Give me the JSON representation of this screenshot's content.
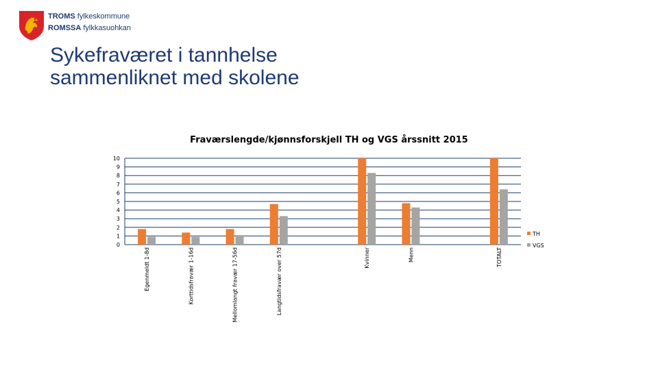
{
  "header": {
    "org_line1_bold": "TROMS",
    "org_line1_rest": " fylkeskommune",
    "org_line2_bold": "ROMSSA",
    "org_line2_rest": " fylkkasuohkan"
  },
  "slide": {
    "title_line1": "Sykefraværet i tannhelse",
    "title_line2": "sammenliknet med skolene"
  },
  "colors": {
    "TH": "#ed7d31",
    "VGS": "#a5a5a5",
    "grid": "#1f3b6e",
    "brand": "#1d3a73",
    "logo_red": "#d8232a",
    "logo_gold": "#f4b400"
  },
  "chart_data": {
    "type": "bar",
    "title": "Fraværslengde/kjønnsforskjell TH og VGS årssnitt 2015",
    "categories": [
      "Egenmeldt 1-8d",
      "Korttidsfravær 1-16d",
      "Mellomlangt fravær 17-56d",
      "Langtidsfravær over 57d",
      "",
      "Kvinner",
      "Menn",
      "",
      "TOTALT"
    ],
    "series": [
      {
        "name": "TH",
        "values": [
          1.8,
          1.4,
          1.8,
          4.7,
          null,
          10,
          4.8,
          null,
          10
        ]
      },
      {
        "name": "VGS",
        "values": [
          0.9,
          0.9,
          1.1,
          3.3,
          null,
          8.3,
          4.3,
          null,
          6.4
        ]
      }
    ],
    "yticks": [
      "0",
      "1",
      "2",
      "3",
      "4",
      "5",
      "6",
      "7",
      "8",
      "9",
      "10"
    ],
    "ylim": [
      0,
      10
    ],
    "grid": true,
    "legend": "right"
  }
}
